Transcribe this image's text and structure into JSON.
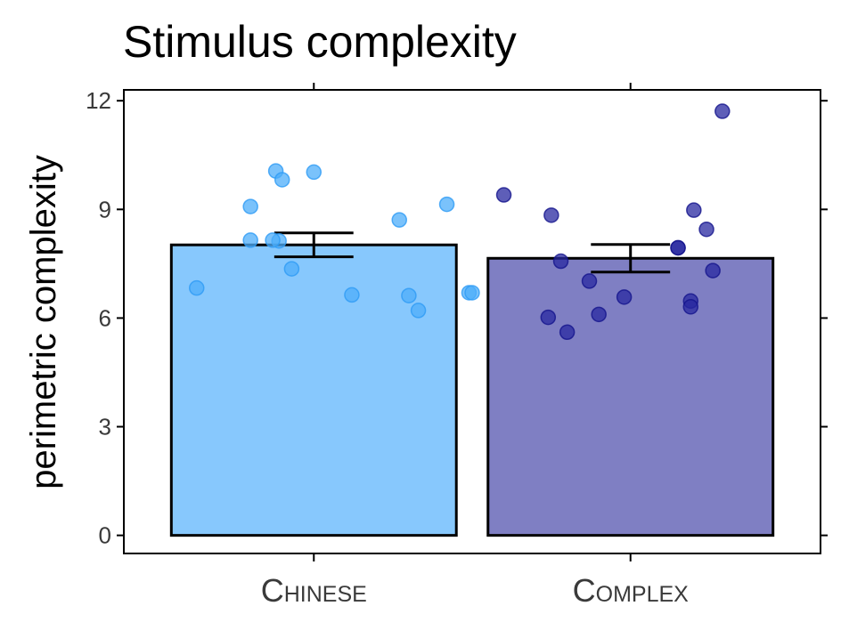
{
  "chart_data": {
    "type": "bar",
    "title": "Stimulus complexity",
    "xlabel": "",
    "ylabel": "perimetric complexity",
    "ylim": [
      -0.5,
      12.3
    ],
    "yticks": [
      0,
      3,
      6,
      9,
      12
    ],
    "categories": [
      "Chinese",
      "Complex"
    ],
    "grid": false,
    "legend": "none",
    "series": [
      {
        "values": [
          8.02,
          7.65
        ],
        "error": [
          0.33,
          0.38
        ],
        "colors": {
          "bar_fill": [
            "#87C8FD",
            "#7F7FC3"
          ],
          "point_fill": [
            "#4EADFA",
            "#2828A0"
          ],
          "point_stroke": [
            "#2E9BF5",
            "#14148C"
          ]
        }
      }
    ],
    "points": [
      {
        "category": "Chinese",
        "values": [
          6.83,
          9.08,
          8.15,
          10.06,
          8.13,
          9.82,
          8.15,
          7.36,
          10.03,
          6.64,
          8.71,
          6.62,
          6.21,
          9.14,
          6.7,
          6.7
        ],
        "jitter": [
          -0.37,
          -0.2,
          -0.2,
          -0.12,
          -0.11,
          -0.1,
          -0.13,
          -0.07,
          0.0,
          0.12,
          0.27,
          0.3,
          0.33,
          0.42,
          0.49,
          0.5
        ]
      },
      {
        "category": "Complex",
        "values": [
          9.4,
          6.02,
          5.61,
          8.84,
          7.57,
          7.02,
          6.1,
          6.58,
          7.94,
          7.94,
          6.47,
          6.31,
          8.98,
          8.45,
          7.31,
          11.71
        ],
        "jitter": [
          -0.4,
          -0.26,
          -0.2,
          -0.25,
          -0.22,
          -0.13,
          -0.1,
          -0.02,
          0.15,
          0.15,
          0.19,
          0.19,
          0.2,
          0.24,
          0.26,
          0.29
        ]
      }
    ]
  }
}
